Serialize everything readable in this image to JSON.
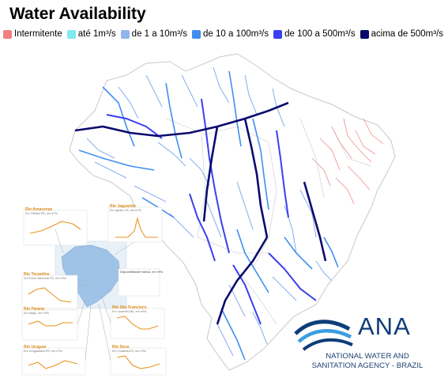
{
  "title": "Water Availability",
  "legend": [
    {
      "label": "Intermitente",
      "color": "#f07f7f"
    },
    {
      "label": "até 1m³/s",
      "color": "#7fe9ee"
    },
    {
      "label": "de 1 a 10m³/s",
      "color": "#8fb4ee"
    },
    {
      "label": "de 10 a 100m³/s",
      "color": "#3f8ff0"
    },
    {
      "label": "de 100 a 500m³/s",
      "color": "#3a3ff0"
    },
    {
      "label": "acima de 500m³/s",
      "color": "#0a0a6e"
    }
  ],
  "logo": {
    "acronym": "ANA",
    "line1": "NATIONAL WATER AND",
    "line2": "SANITATION AGENCY - BRAZIL",
    "colors": {
      "dark": "#0d3d7a",
      "light": "#3a9ee0"
    }
  },
  "insets": [
    {
      "title": "Rio Amazonas",
      "subtitle": "Em Óbidos-PA, em m³/s"
    },
    {
      "title": "Rio Jaguaribe",
      "subtitle": "Em Iguatu-CE, em m³/s"
    },
    {
      "title": "Rio Tocantins",
      "subtitle": "Em Porto Nacional-TO, em m³/s"
    },
    {
      "title": "Rio Paraná",
      "subtitle": "Em Itaipu, em m³/s"
    },
    {
      "title": "Rio São Francisco",
      "subtitle": "Em Juazeiro-BA, em m³/s"
    },
    {
      "title": "Rio Uruguai",
      "subtitle": "Em Uruguaiana-RS, em m³/s"
    },
    {
      "title": "Rio Doce",
      "subtitle": "Em Colatina-ES, em m³/s"
    }
  ],
  "mini_legend": {
    "title": "Disponibilidade hídrica, em m³/s"
  }
}
